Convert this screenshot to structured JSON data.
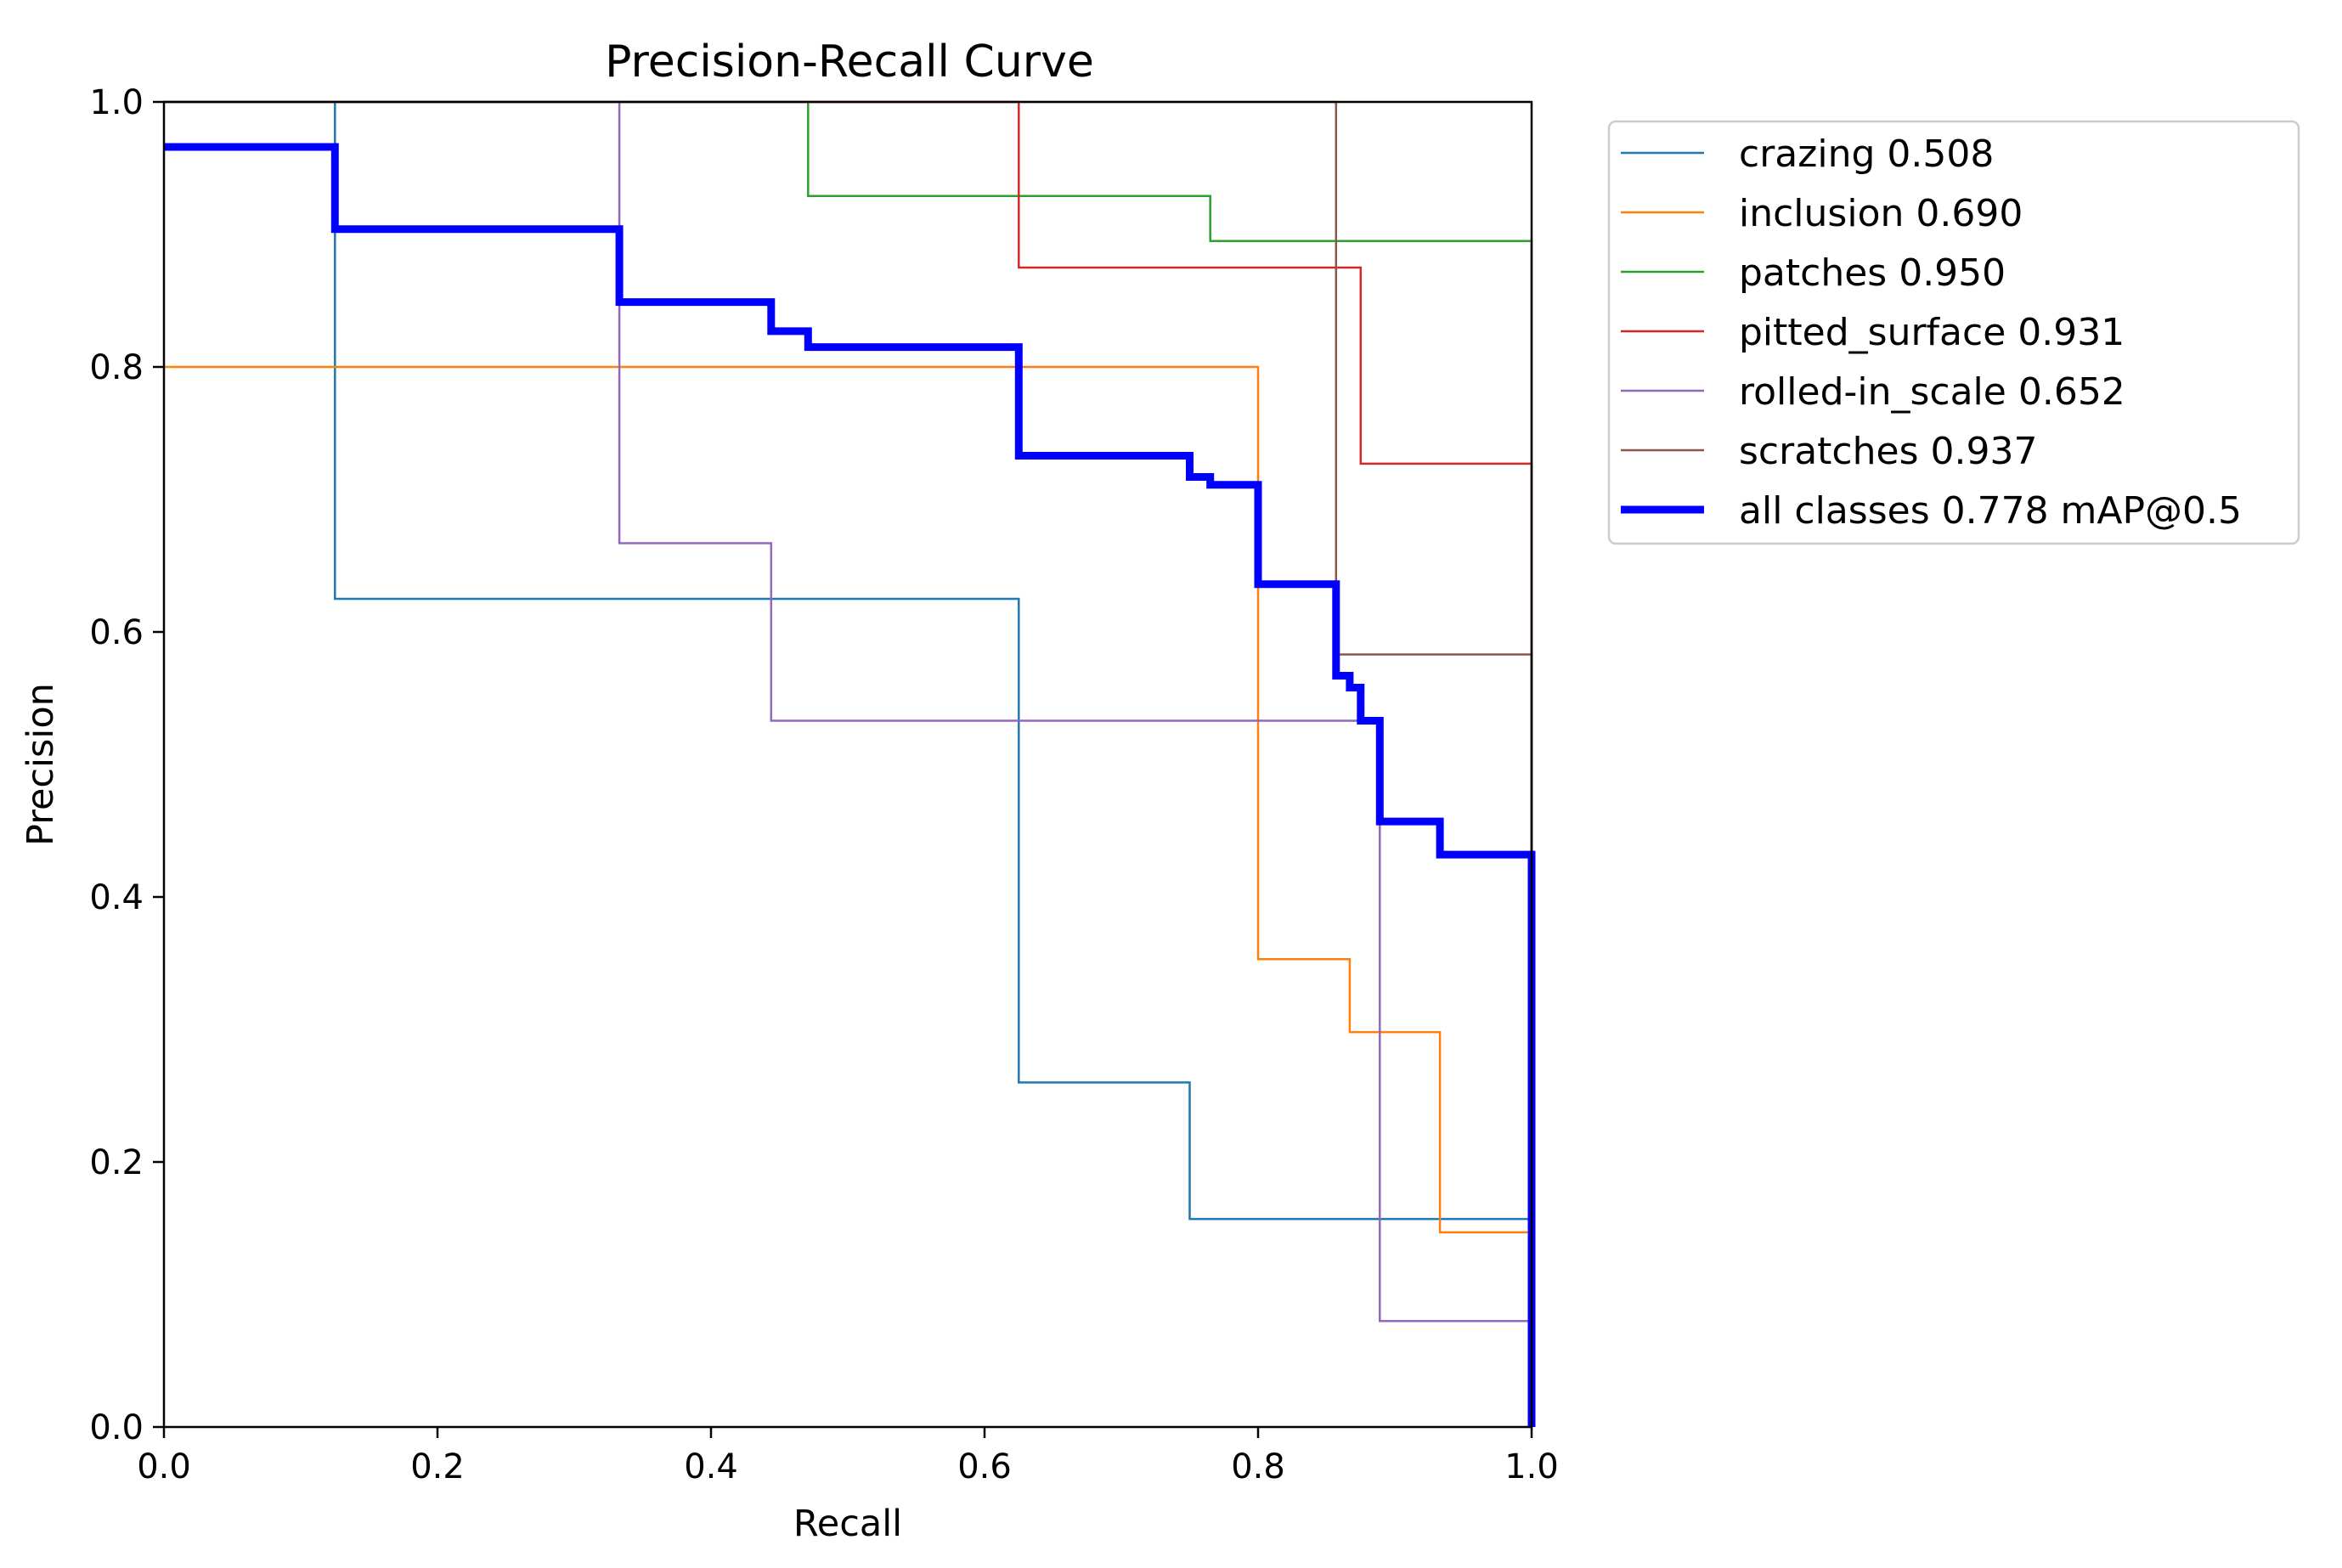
{
  "chart_data": {
    "type": "line",
    "title": "Precision-Recall Curve",
    "xlabel": "Recall",
    "ylabel": "Precision",
    "xlim": [
      0,
      1
    ],
    "ylim": [
      0,
      1
    ],
    "xticks": [
      "0.0",
      "0.2",
      "0.4",
      "0.6",
      "0.8",
      "1.0"
    ],
    "yticks": [
      "0.0",
      "0.2",
      "0.4",
      "0.6",
      "0.8",
      "1.0"
    ],
    "grid": false,
    "legend_position": "outside-top-right",
    "series": [
      {
        "name": "crazing",
        "label": "crazing 0.508",
        "color": "#1f77b4",
        "emphasis": false,
        "x": [
          0.0,
          0.125,
          0.125,
          0.625,
          0.625,
          0.75,
          0.75,
          1.0
        ],
        "y": [
          1.0,
          1.0,
          0.625,
          0.625,
          0.26,
          0.26,
          0.157,
          0.157
        ]
      },
      {
        "name": "inclusion",
        "label": "inclusion 0.690",
        "color": "#ff7f0e",
        "emphasis": false,
        "x": [
          0.0,
          0.8,
          0.8,
          0.867,
          0.867,
          0.933,
          0.933,
          1.0
        ],
        "y": [
          0.8,
          0.8,
          0.353,
          0.353,
          0.298,
          0.298,
          0.147,
          0.147
        ]
      },
      {
        "name": "patches",
        "label": "patches 0.950",
        "color": "#2ca02c",
        "emphasis": false,
        "x": [
          0.0,
          0.471,
          0.471,
          0.765,
          0.765,
          1.0,
          1.0
        ],
        "y": [
          1.0,
          1.0,
          0.929,
          0.929,
          0.895,
          0.895,
          0.0
        ]
      },
      {
        "name": "pitted_surface",
        "label": "pitted_surface 0.931",
        "color": "#d62728",
        "emphasis": false,
        "x": [
          0.0,
          0.625,
          0.625,
          0.875,
          0.875,
          1.0,
          1.0
        ],
        "y": [
          1.0,
          1.0,
          0.875,
          0.875,
          0.727,
          0.727,
          0.0
        ]
      },
      {
        "name": "rolled-in_scale",
        "label": "rolled-in_scale 0.652",
        "color": "#9467bd",
        "emphasis": false,
        "x": [
          0.0,
          0.333,
          0.333,
          0.444,
          0.444,
          0.889,
          0.889,
          1.0
        ],
        "y": [
          1.0,
          1.0,
          0.667,
          0.667,
          0.533,
          0.533,
          0.08,
          0.08
        ]
      },
      {
        "name": "scratches",
        "label": "scratches 0.937",
        "color": "#8c564b",
        "emphasis": false,
        "x": [
          0.0,
          0.857,
          0.857,
          1.0,
          1.0
        ],
        "y": [
          1.0,
          1.0,
          0.583,
          0.583,
          0.0
        ]
      },
      {
        "name": "all classes",
        "label": "all classes 0.778 mAP@0.5",
        "color": "#0000ff",
        "emphasis": true,
        "x": [
          0.0,
          0.125,
          0.125,
          0.333,
          0.333,
          0.444,
          0.444,
          0.471,
          0.471,
          0.625,
          0.625,
          0.75,
          0.75,
          0.765,
          0.765,
          0.8,
          0.8,
          0.857,
          0.857,
          0.867,
          0.867,
          0.875,
          0.875,
          0.889,
          0.889,
          0.933,
          0.933,
          1.0,
          1.0
        ],
        "y": [
          0.966,
          0.966,
          0.904,
          0.904,
          0.849,
          0.849,
          0.827,
          0.827,
          0.815,
          0.815,
          0.733,
          0.733,
          0.717,
          0.717,
          0.711,
          0.711,
          0.636,
          0.636,
          0.567,
          0.567,
          0.558,
          0.558,
          0.533,
          0.533,
          0.457,
          0.457,
          0.432,
          0.432,
          0.0
        ]
      }
    ]
  }
}
